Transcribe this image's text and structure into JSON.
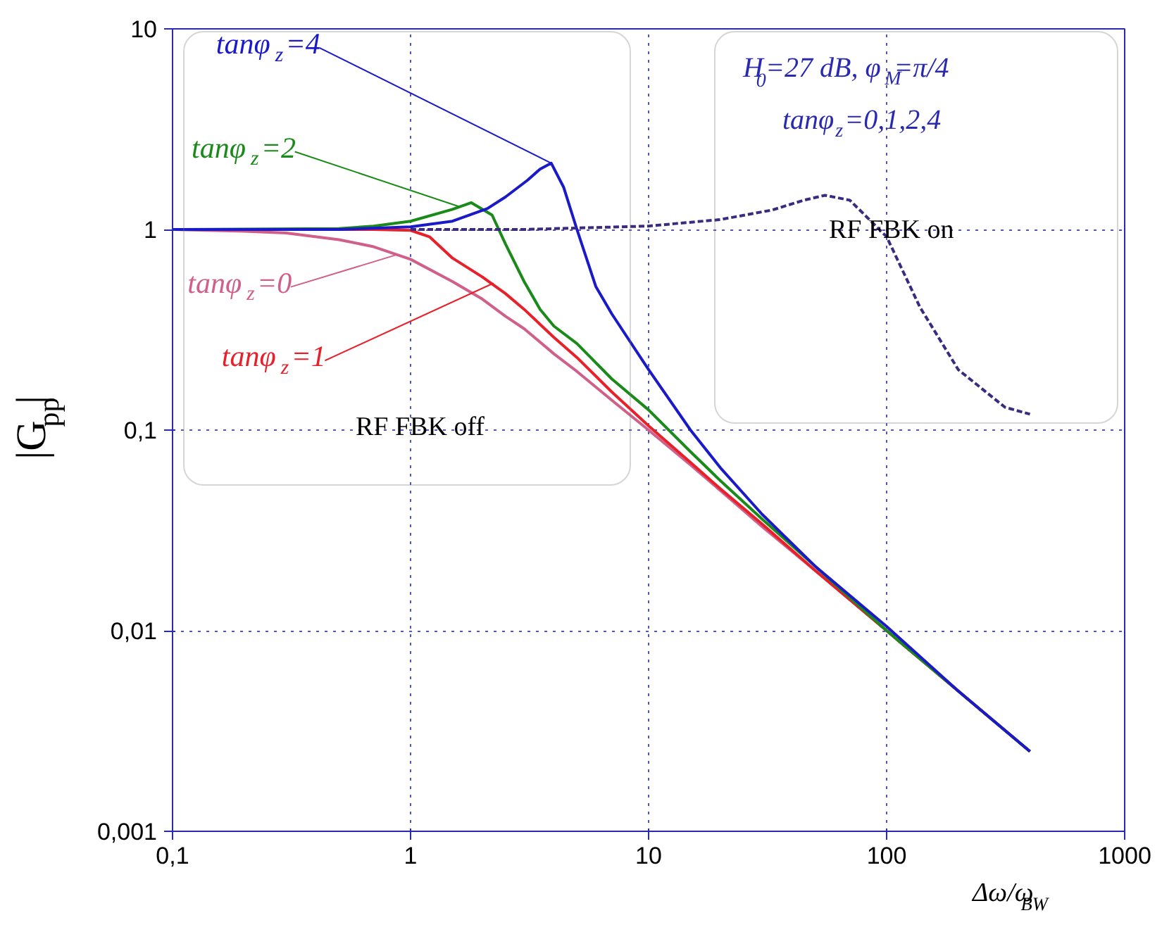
{
  "chart_data": {
    "type": "line",
    "xlabel": "Δω/ω$_{BW}$",
    "ylabel": "|G$_{pp}$|",
    "log": "xy",
    "grid": true,
    "marker": "none",
    "line_style": "solid",
    "xlim": [
      0.1,
      1000
    ],
    "ylim": [
      0.001,
      10
    ],
    "xticks": [
      {
        "value": 0.1,
        "label": "0,1"
      },
      1,
      10,
      100,
      1000
    ],
    "yticks": [
      {
        "value": 0.001,
        "label": "0,001"
      },
      {
        "value": 0.01,
        "label": "0,01"
      },
      {
        "value": 0.1,
        "label": "0,1"
      },
      1,
      10
    ],
    "series": [
      {
        "color": "#d0608a",
        "x": [
          0.1,
          0.2,
          0.3,
          0.5,
          0.7,
          1,
          1.5,
          2,
          2.5,
          3,
          4,
          5,
          7,
          10,
          15,
          20,
          30,
          50,
          100,
          200,
          400
        ],
        "values": [
          1,
          0.98,
          0.96,
          0.89,
          0.82,
          0.71,
          0.55,
          0.45,
          0.37,
          0.32,
          0.24,
          0.196,
          0.141,
          0.1,
          0.067,
          0.05,
          0.033,
          0.02,
          0.01,
          0.005,
          0.0025
        ]
      },
      {
        "color": "#e8202a",
        "x": [
          0.1,
          0.5,
          0.7,
          1,
          1.2,
          1.5,
          2,
          2.5,
          3,
          4,
          5,
          7,
          10,
          15,
          20,
          30,
          50,
          100,
          200,
          400
        ],
        "values": [
          1,
          1,
          1,
          0.99,
          0.92,
          0.72,
          0.58,
          0.48,
          0.4,
          0.29,
          0.23,
          0.155,
          0.105,
          0.069,
          0.051,
          0.034,
          0.02,
          0.01,
          0.005,
          0.0025
        ]
      },
      {
        "color": "#1a8a1a",
        "x": [
          0.1,
          0.5,
          0.7,
          1,
          1.5,
          1.8,
          2.2,
          2.5,
          3,
          3.5,
          4,
          5,
          7,
          10,
          15,
          20,
          30,
          50,
          100,
          200,
          400
        ],
        "values": [
          1,
          1.01,
          1.04,
          1.1,
          1.26,
          1.36,
          1.18,
          0.85,
          0.55,
          0.4,
          0.33,
          0.27,
          0.18,
          0.126,
          0.078,
          0.056,
          0.036,
          0.021,
          0.01,
          0.005,
          0.0025
        ]
      },
      {
        "color": "#1a1ac8",
        "x": [
          0.1,
          0.5,
          1,
          1.5,
          2.1,
          2.5,
          3.1,
          3.5,
          3.9,
          4.4,
          5,
          6,
          7,
          10,
          15,
          20,
          30,
          50,
          100,
          200,
          400
        ],
        "values": [
          1,
          1,
          1.03,
          1.1,
          1.27,
          1.45,
          1.76,
          2.0,
          2.14,
          1.62,
          1.0,
          0.52,
          0.38,
          0.2,
          0.1,
          0.065,
          0.038,
          0.021,
          0.0105,
          0.005,
          0.0025
        ]
      },
      {
        "color": "#3a2a80",
        "line_style": "dashed",
        "x": [
          1,
          3,
          10,
          13,
          20,
          33,
          45,
          55,
          70,
          100,
          138,
          200,
          314,
          400
        ],
        "values": [
          1,
          1,
          1.04,
          1.07,
          1.12,
          1.25,
          1.4,
          1.48,
          1.4,
          0.92,
          0.41,
          0.2,
          0.13,
          0.12
        ]
      }
    ],
    "annotations": [
      {
        "text": "tanφ$_{z}$=4",
        "x": 3.9,
        "y": 2.14
      },
      {
        "text": "tanφ$_{z}$=2",
        "x": 1.6,
        "y": 1.3
      },
      {
        "text": "tanφ$_{z}$=0",
        "x": 0.88,
        "y": 0.75
      },
      {
        "text": "tanφ$_{z}$=1",
        "x": 2.23,
        "y": 0.54
      },
      "RF FBK off",
      "RF FBK on",
      "H$_{0}$=27 dB, φ$_{M}$=π/4",
      "tanφ$_{z}$=0,1,2,4"
    ]
  }
}
